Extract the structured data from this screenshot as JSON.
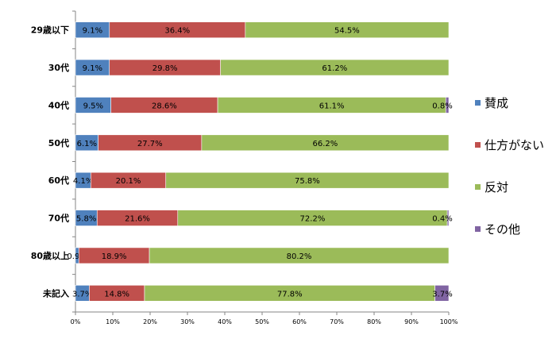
{
  "chart_data": {
    "type": "bar",
    "orientation": "horizontal",
    "stacked": "percent",
    "categories": [
      "29歳以下",
      "30代",
      "40代",
      "50代",
      "60代",
      "70代",
      "80歳以上",
      "未記入"
    ],
    "series": [
      {
        "name": "賛成",
        "color": "#4f81bd",
        "values": [
          9.1,
          9.1,
          9.5,
          6.1,
          4.1,
          5.8,
          0.9,
          3.7
        ],
        "labels": [
          "9.1%",
          "9.1%",
          "9.5%",
          "6.1%",
          "4.1%",
          "5.8%",
          "0.9%",
          "3.7%"
        ]
      },
      {
        "name": "仕方がない",
        "color": "#c0504d",
        "values": [
          36.4,
          29.8,
          28.6,
          27.7,
          20.1,
          21.6,
          18.9,
          14.8
        ],
        "labels": [
          "36.4%",
          "29.8%",
          "28.6%",
          "27.7%",
          "20.1%",
          "21.6%",
          "18.9%",
          "14.8%"
        ]
      },
      {
        "name": "反対",
        "color": "#9bbb59",
        "values": [
          54.5,
          61.2,
          61.1,
          66.2,
          75.8,
          72.2,
          80.2,
          77.8
        ],
        "labels": [
          "54.5%",
          "61.2%",
          "61.1%",
          "66.2%",
          "75.8%",
          "72.2%",
          "80.2%",
          "77.8%"
        ]
      },
      {
        "name": "その他",
        "color": "#8064a2",
        "values": [
          0,
          0,
          0.8,
          0,
          0,
          0.4,
          0,
          3.7
        ],
        "labels": [
          "",
          "",
          "0.8%",
          "",
          "",
          "0.4%",
          "",
          "3.7%"
        ]
      }
    ],
    "xlim": [
      0,
      100
    ],
    "xticks": [
      "0%",
      "10%",
      "20%",
      "30%",
      "40%",
      "50%",
      "60%",
      "70%",
      "80%",
      "90%",
      "100%"
    ],
    "grid": false,
    "legend_position": "right"
  }
}
